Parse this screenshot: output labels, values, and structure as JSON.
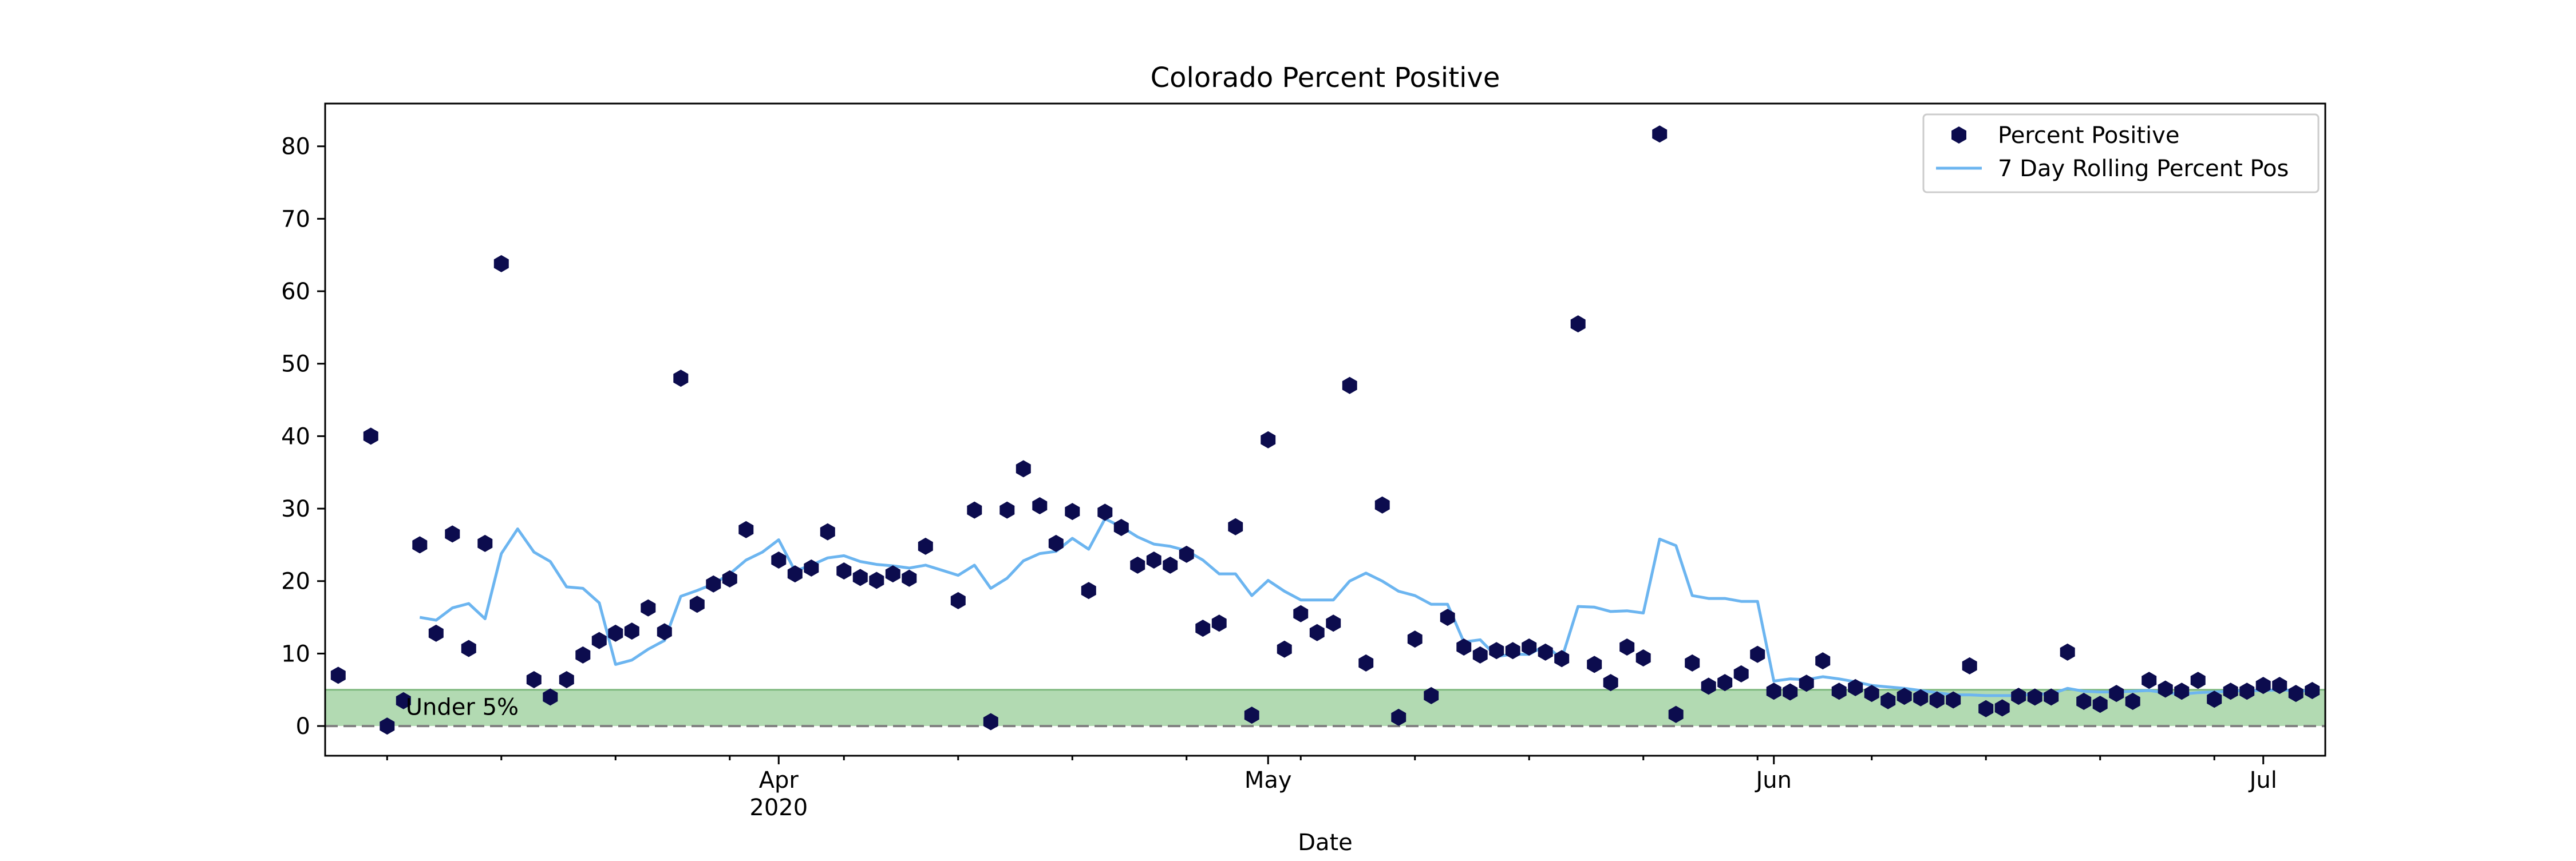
{
  "chart_data": {
    "type": "scatter",
    "title": "Colorado Percent Positive",
    "xlabel": "Date",
    "ylabel": "",
    "xlim": [
      "2020-03-05",
      "2020-07-04"
    ],
    "ylim": [
      -4.1,
      85.9
    ],
    "y_ticks": [
      0,
      10,
      20,
      30,
      40,
      50,
      60,
      70,
      80
    ],
    "x_major_ticks": [
      {
        "date": "2020-04-01",
        "label": "Apr",
        "sublabel": "2020"
      },
      {
        "date": "2020-05-01",
        "label": "May",
        "sublabel": ""
      },
      {
        "date": "2020-06-01",
        "label": "Jun",
        "sublabel": ""
      },
      {
        "date": "2020-07-01",
        "label": "Jul",
        "sublabel": ""
      }
    ],
    "grid": false,
    "legend_position": "top-right",
    "colors": {
      "points": "#0c0c4e",
      "rolling": "#6cb5f0",
      "band": "#9fd19f",
      "threshold_line": "#808080"
    },
    "annotation": {
      "text": "Under 5%",
      "x": "2020-03-09",
      "y": 2
    },
    "band": {
      "y_from": 0,
      "y_to": 5
    },
    "threshold": 0,
    "series": [
      {
        "name": "Percent Positive",
        "type": "scatter",
        "points": [
          [
            "2020-03-05",
            7.0
          ],
          [
            "2020-03-07",
            40.0
          ],
          [
            "2020-03-08",
            0.0
          ],
          [
            "2020-03-09",
            3.5
          ],
          [
            "2020-03-10",
            25.0
          ],
          [
            "2020-03-11",
            12.8
          ],
          [
            "2020-03-12",
            26.5
          ],
          [
            "2020-03-13",
            10.7
          ],
          [
            "2020-03-14",
            25.2
          ],
          [
            "2020-03-15",
            63.8
          ],
          [
            "2020-03-17",
            6.4
          ],
          [
            "2020-03-18",
            4.0
          ],
          [
            "2020-03-19",
            6.4
          ],
          [
            "2020-03-20",
            9.8
          ],
          [
            "2020-03-21",
            11.8
          ],
          [
            "2020-03-22",
            12.8
          ],
          [
            "2020-03-23",
            13.1
          ],
          [
            "2020-03-24",
            16.3
          ],
          [
            "2020-03-25",
            13.0
          ],
          [
            "2020-03-26",
            48.0
          ],
          [
            "2020-03-27",
            16.8
          ],
          [
            "2020-03-28",
            19.6
          ],
          [
            "2020-03-29",
            20.3
          ],
          [
            "2020-03-30",
            27.1
          ],
          [
            "2020-04-01",
            22.9
          ],
          [
            "2020-04-02",
            21.0
          ],
          [
            "2020-04-03",
            21.8
          ],
          [
            "2020-04-04",
            26.8
          ],
          [
            "2020-04-05",
            21.4
          ],
          [
            "2020-04-06",
            20.5
          ],
          [
            "2020-04-07",
            20.1
          ],
          [
            "2020-04-08",
            21.0
          ],
          [
            "2020-04-09",
            20.4
          ],
          [
            "2020-04-10",
            24.8
          ],
          [
            "2020-04-12",
            17.3
          ],
          [
            "2020-04-13",
            29.8
          ],
          [
            "2020-04-14",
            0.6
          ],
          [
            "2020-04-15",
            29.8
          ],
          [
            "2020-04-16",
            35.5
          ],
          [
            "2020-04-17",
            30.4
          ],
          [
            "2020-04-18",
            25.2
          ],
          [
            "2020-04-19",
            29.6
          ],
          [
            "2020-04-20",
            18.7
          ],
          [
            "2020-04-21",
            29.5
          ],
          [
            "2020-04-22",
            27.4
          ],
          [
            "2020-04-23",
            22.2
          ],
          [
            "2020-04-24",
            22.9
          ],
          [
            "2020-04-25",
            22.2
          ],
          [
            "2020-04-26",
            23.7
          ],
          [
            "2020-04-27",
            13.5
          ],
          [
            "2020-04-28",
            14.2
          ],
          [
            "2020-04-29",
            27.5
          ],
          [
            "2020-04-30",
            1.5
          ],
          [
            "2020-05-01",
            39.5
          ],
          [
            "2020-05-02",
            10.6
          ],
          [
            "2020-05-03",
            15.5
          ],
          [
            "2020-05-04",
            12.9
          ],
          [
            "2020-05-05",
            14.2
          ],
          [
            "2020-05-06",
            47.0
          ],
          [
            "2020-05-07",
            8.7
          ],
          [
            "2020-05-08",
            30.5
          ],
          [
            "2020-05-09",
            1.2
          ],
          [
            "2020-05-10",
            12.0
          ],
          [
            "2020-05-11",
            4.2
          ],
          [
            "2020-05-12",
            15.0
          ],
          [
            "2020-05-13",
            10.9
          ],
          [
            "2020-05-14",
            9.8
          ],
          [
            "2020-05-15",
            10.4
          ],
          [
            "2020-05-16",
            10.4
          ],
          [
            "2020-05-17",
            10.9
          ],
          [
            "2020-05-18",
            10.2
          ],
          [
            "2020-05-19",
            9.3
          ],
          [
            "2020-05-20",
            55.5
          ],
          [
            "2020-05-21",
            8.5
          ],
          [
            "2020-05-22",
            6.0
          ],
          [
            "2020-05-23",
            10.9
          ],
          [
            "2020-05-24",
            9.4
          ],
          [
            "2020-05-25",
            81.7
          ],
          [
            "2020-05-26",
            1.6
          ],
          [
            "2020-05-27",
            8.7
          ],
          [
            "2020-05-28",
            5.5
          ],
          [
            "2020-05-29",
            6.0
          ],
          [
            "2020-05-30",
            7.2
          ],
          [
            "2020-05-31",
            9.9
          ],
          [
            "2020-06-01",
            4.8
          ],
          [
            "2020-06-02",
            4.7
          ],
          [
            "2020-06-03",
            5.9
          ],
          [
            "2020-06-04",
            9.0
          ],
          [
            "2020-06-05",
            4.8
          ],
          [
            "2020-06-06",
            5.3
          ],
          [
            "2020-06-07",
            4.5
          ],
          [
            "2020-06-08",
            3.5
          ],
          [
            "2020-06-09",
            4.1
          ],
          [
            "2020-06-10",
            3.9
          ],
          [
            "2020-06-11",
            3.6
          ],
          [
            "2020-06-12",
            3.6
          ],
          [
            "2020-06-13",
            8.3
          ],
          [
            "2020-06-14",
            2.4
          ],
          [
            "2020-06-15",
            2.5
          ],
          [
            "2020-06-16",
            4.1
          ],
          [
            "2020-06-17",
            4.0
          ],
          [
            "2020-06-18",
            4.0
          ],
          [
            "2020-06-19",
            10.2
          ],
          [
            "2020-06-20",
            3.4
          ],
          [
            "2020-06-21",
            3.0
          ],
          [
            "2020-06-22",
            4.5
          ],
          [
            "2020-06-23",
            3.4
          ],
          [
            "2020-06-24",
            6.3
          ],
          [
            "2020-06-25",
            5.1
          ],
          [
            "2020-06-26",
            4.8
          ],
          [
            "2020-06-27",
            6.3
          ],
          [
            "2020-06-28",
            3.7
          ],
          [
            "2020-06-29",
            4.8
          ],
          [
            "2020-06-30",
            4.8
          ],
          [
            "2020-07-01",
            5.6
          ],
          [
            "2020-07-02",
            5.6
          ],
          [
            "2020-07-03",
            4.5
          ],
          [
            "2020-07-04",
            4.9
          ]
        ]
      },
      {
        "name": "7 Day Rolling Percent Pos",
        "type": "line",
        "points": [
          [
            "2020-03-10",
            15.0
          ],
          [
            "2020-03-11",
            14.6
          ],
          [
            "2020-03-12",
            16.3
          ],
          [
            "2020-03-13",
            16.9
          ],
          [
            "2020-03-14",
            14.8
          ],
          [
            "2020-03-15",
            23.8
          ],
          [
            "2020-03-16",
            27.2
          ],
          [
            "2020-03-17",
            24.0
          ],
          [
            "2020-03-18",
            22.7
          ],
          [
            "2020-03-19",
            19.2
          ],
          [
            "2020-03-20",
            19.0
          ],
          [
            "2020-03-21",
            17.0
          ],
          [
            "2020-03-22",
            8.5
          ],
          [
            "2020-03-23",
            9.1
          ],
          [
            "2020-03-24",
            10.6
          ],
          [
            "2020-03-25",
            11.8
          ],
          [
            "2020-03-26",
            17.9
          ],
          [
            "2020-03-27",
            18.7
          ],
          [
            "2020-03-28",
            19.6
          ],
          [
            "2020-03-29",
            21.0
          ],
          [
            "2020-03-30",
            22.9
          ],
          [
            "2020-03-31",
            24.0
          ],
          [
            "2020-04-01",
            25.7
          ],
          [
            "2020-04-02",
            21.4
          ],
          [
            "2020-04-03",
            22.2
          ],
          [
            "2020-04-04",
            23.2
          ],
          [
            "2020-04-05",
            23.5
          ],
          [
            "2020-04-06",
            22.7
          ],
          [
            "2020-04-07",
            22.3
          ],
          [
            "2020-04-08",
            22.1
          ],
          [
            "2020-04-09",
            21.8
          ],
          [
            "2020-04-10",
            22.2
          ],
          [
            "2020-04-11",
            21.5
          ],
          [
            "2020-04-12",
            20.8
          ],
          [
            "2020-04-13",
            22.2
          ],
          [
            "2020-04-14",
            19.0
          ],
          [
            "2020-04-15",
            20.4
          ],
          [
            "2020-04-16",
            22.8
          ],
          [
            "2020-04-17",
            23.8
          ],
          [
            "2020-04-18",
            24.1
          ],
          [
            "2020-04-19",
            25.9
          ],
          [
            "2020-04-20",
            24.4
          ],
          [
            "2020-04-21",
            28.6
          ],
          [
            "2020-04-22",
            27.5
          ],
          [
            "2020-04-23",
            26.1
          ],
          [
            "2020-04-24",
            25.1
          ],
          [
            "2020-04-25",
            24.8
          ],
          [
            "2020-04-26",
            24.2
          ],
          [
            "2020-04-27",
            22.9
          ],
          [
            "2020-04-28",
            21.0
          ],
          [
            "2020-04-29",
            21.0
          ],
          [
            "2020-04-30",
            18.0
          ],
          [
            "2020-05-01",
            20.1
          ],
          [
            "2020-05-02",
            18.6
          ],
          [
            "2020-05-03",
            17.4
          ],
          [
            "2020-05-04",
            17.4
          ],
          [
            "2020-05-05",
            17.4
          ],
          [
            "2020-05-06",
            20.0
          ],
          [
            "2020-05-07",
            21.1
          ],
          [
            "2020-05-08",
            20.0
          ],
          [
            "2020-05-09",
            18.6
          ],
          [
            "2020-05-10",
            18.0
          ],
          [
            "2020-05-11",
            16.8
          ],
          [
            "2020-05-12",
            16.8
          ],
          [
            "2020-05-13",
            11.6
          ],
          [
            "2020-05-14",
            11.9
          ],
          [
            "2020-05-15",
            9.6
          ],
          [
            "2020-05-16",
            9.9
          ],
          [
            "2020-05-17",
            9.9
          ],
          [
            "2020-05-18",
            11.1
          ],
          [
            "2020-05-19",
            9.3
          ],
          [
            "2020-05-20",
            16.5
          ],
          [
            "2020-05-21",
            16.4
          ],
          [
            "2020-05-22",
            15.8
          ],
          [
            "2020-05-23",
            15.9
          ],
          [
            "2020-05-24",
            15.6
          ],
          [
            "2020-05-25",
            25.8
          ],
          [
            "2020-05-26",
            24.9
          ],
          [
            "2020-05-27",
            18.0
          ],
          [
            "2020-05-28",
            17.6
          ],
          [
            "2020-05-29",
            17.6
          ],
          [
            "2020-05-30",
            17.2
          ],
          [
            "2020-05-31",
            17.2
          ],
          [
            "2020-06-01",
            6.2
          ],
          [
            "2020-06-02",
            6.5
          ],
          [
            "2020-06-03",
            6.4
          ],
          [
            "2020-06-04",
            6.8
          ],
          [
            "2020-06-05",
            6.5
          ],
          [
            "2020-06-06",
            6.1
          ],
          [
            "2020-06-07",
            5.6
          ],
          [
            "2020-06-08",
            5.4
          ],
          [
            "2020-06-09",
            5.2
          ],
          [
            "2020-06-10",
            4.9
          ],
          [
            "2020-06-11",
            4.6
          ],
          [
            "2020-06-12",
            4.3
          ],
          [
            "2020-06-13",
            4.3
          ],
          [
            "2020-06-14",
            4.2
          ],
          [
            "2020-06-15",
            4.2
          ],
          [
            "2020-06-16",
            4.2
          ],
          [
            "2020-06-17",
            4.4
          ],
          [
            "2020-06-18",
            4.4
          ],
          [
            "2020-06-19",
            5.2
          ],
          [
            "2020-06-20",
            4.8
          ],
          [
            "2020-06-21",
            4.7
          ],
          [
            "2020-06-22",
            4.7
          ],
          [
            "2020-06-23",
            4.8
          ],
          [
            "2020-06-24",
            4.9
          ],
          [
            "2020-06-25",
            4.6
          ],
          [
            "2020-06-26",
            4.4
          ],
          [
            "2020-06-27",
            4.6
          ],
          [
            "2020-06-28",
            4.7
          ],
          [
            "2020-06-29",
            4.8
          ],
          [
            "2020-06-30",
            4.9
          ],
          [
            "2020-07-01",
            4.9
          ],
          [
            "2020-07-02",
            5.0
          ],
          [
            "2020-07-03",
            4.9
          ],
          [
            "2020-07-04",
            4.8
          ]
        ]
      }
    ]
  }
}
